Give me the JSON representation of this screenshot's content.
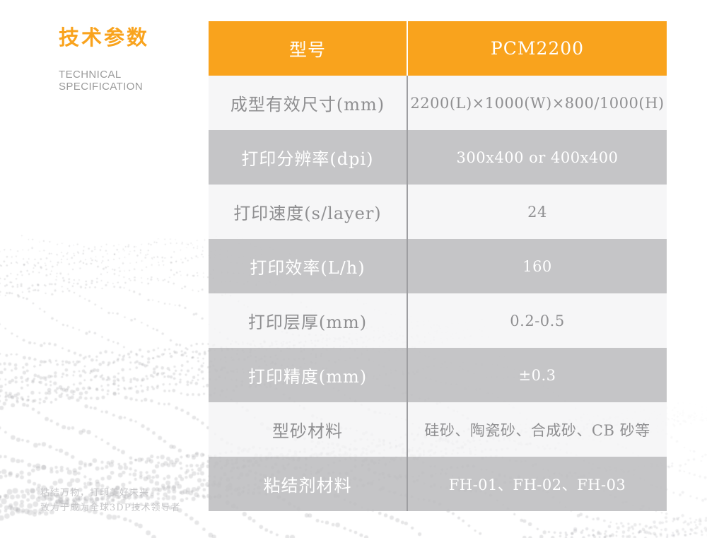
{
  "header": {
    "title_zh": "技术参数",
    "subtitle_line1": "TECHNICAL",
    "subtitle_line2": "SPECIFICATION"
  },
  "colors": {
    "accent_orange": "#F9A31D",
    "row_gray": "#BDBDBF",
    "row_light": "#F4F4F5",
    "text_gray": "#8F8F91",
    "divider_gray": "#9E9EA1"
  },
  "table": {
    "header": {
      "label": "型号",
      "value": "PCM2200"
    },
    "rows": [
      {
        "label": "成型有效尺寸(mm)",
        "value": "2200(L)×1000(W)×800/1000(H)"
      },
      {
        "label": "打印分辨率(dpi)",
        "value": "300x400 or 400x400"
      },
      {
        "label": "打印速度(s/layer)",
        "value": "24"
      },
      {
        "label": "打印效率(L/h)",
        "value": "160"
      },
      {
        "label": "打印层厚(mm)",
        "value": "0.2-0.5"
      },
      {
        "label": "打印精度(mm)",
        "value": "±0.3"
      },
      {
        "label": "型砂材料",
        "value": "硅砂、陶瓷砂、合成砂、CB 砂等"
      },
      {
        "label": "粘结剂材料",
        "value": "FH-01、FH-02、FH-03"
      }
    ]
  },
  "footer": {
    "tagline_line1": "粘结万物，打印美好未来",
    "tagline_line2": "致力于成为全球3DP技术领导者"
  }
}
